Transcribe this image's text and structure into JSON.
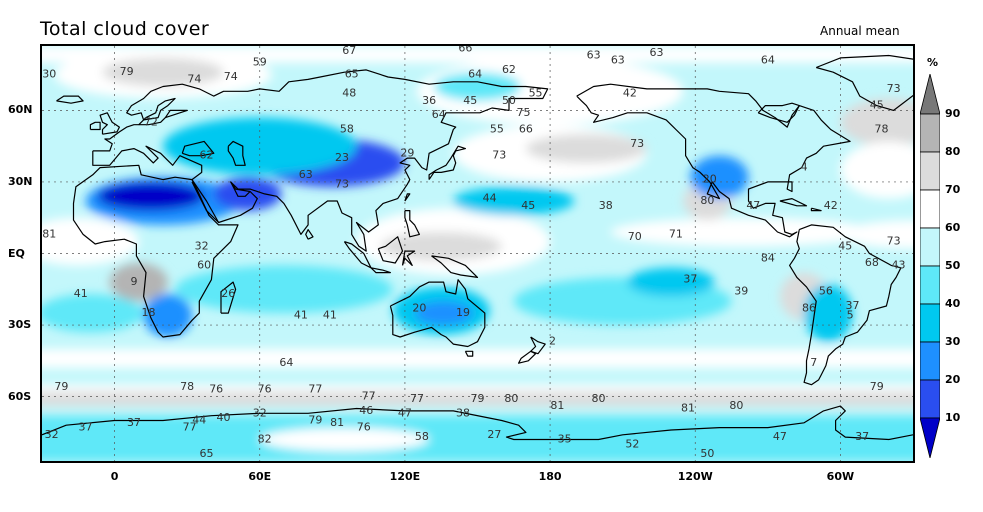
{
  "header": {
    "title": "Total cloud cover",
    "subtitle": "Annual mean"
  },
  "axes": {
    "y_labels": [
      {
        "label": "60N",
        "lat": 60
      },
      {
        "label": "30N",
        "lat": 30
      },
      {
        "label": "EQ",
        "lat": 0
      },
      {
        "label": "30S",
        "lat": -30
      },
      {
        "label": "60S",
        "lat": -60
      }
    ],
    "x_labels": [
      {
        "label": "0",
        "lon": 0
      },
      {
        "label": "60E",
        "lon": 60
      },
      {
        "label": "120E",
        "lon": 120
      },
      {
        "label": "180",
        "lon": 180
      },
      {
        "label": "120W",
        "lon": 240
      },
      {
        "label": "60W",
        "lon": 300
      }
    ],
    "lon_range": [
      -30,
      330
    ],
    "lat_range": [
      -87,
      87
    ]
  },
  "colorbar": {
    "unit": "%",
    "levels": [
      "10",
      "20",
      "30",
      "40",
      "50",
      "60",
      "70",
      "80",
      "90"
    ],
    "colors": [
      "#0000c8",
      "#2a4ef0",
      "#1e90ff",
      "#00c8f0",
      "#5ee8f8",
      "#c3f7fb",
      "#ffffff",
      "#dcdcdc",
      "#b4b4b4",
      "#787878"
    ]
  },
  "map_labels": [
    {
      "text": "30",
      "lon": -27,
      "lat": 75
    },
    {
      "text": "79",
      "lon": 5,
      "lat": 76
    },
    {
      "text": "74",
      "lon": 33,
      "lat": 73
    },
    {
      "text": "74",
      "lon": 48,
      "lat": 74
    },
    {
      "text": "59",
      "lon": 60,
      "lat": 80
    },
    {
      "text": "67",
      "lon": 97,
      "lat": 85
    },
    {
      "text": "65",
      "lon": 98,
      "lat": 75
    },
    {
      "text": "48",
      "lon": 97,
      "lat": 67
    },
    {
      "text": "66",
      "lon": 145,
      "lat": 86
    },
    {
      "text": "64",
      "lon": 149,
      "lat": 75
    },
    {
      "text": "62",
      "lon": 163,
      "lat": 77
    },
    {
      "text": "63",
      "lon": 198,
      "lat": 83
    },
    {
      "text": "63",
      "lon": 208,
      "lat": 81
    },
    {
      "text": "63",
      "lon": 224,
      "lat": 84
    },
    {
      "text": "64",
      "lon": 270,
      "lat": 81
    },
    {
      "text": "36",
      "lon": 130,
      "lat": 64
    },
    {
      "text": "45",
      "lon": 147,
      "lat": 64
    },
    {
      "text": "50",
      "lon": 163,
      "lat": 64
    },
    {
      "text": "55",
      "lon": 174,
      "lat": 67
    },
    {
      "text": "42",
      "lon": 213,
      "lat": 67
    },
    {
      "text": "73",
      "lon": 322,
      "lat": 69
    },
    {
      "text": "45",
      "lon": 315,
      "lat": 62
    },
    {
      "text": "64",
      "lon": 134,
      "lat": 58
    },
    {
      "text": "75",
      "lon": 169,
      "lat": 59
    },
    {
      "text": "55",
      "lon": 158,
      "lat": 52
    },
    {
      "text": "66",
      "lon": 170,
      "lat": 52
    },
    {
      "text": "78",
      "lon": 317,
      "lat": 52
    },
    {
      "text": "58",
      "lon": 96,
      "lat": 52
    },
    {
      "text": "72",
      "lon": 15,
      "lat": 55
    },
    {
      "text": "62",
      "lon": 38,
      "lat": 41
    },
    {
      "text": "23",
      "lon": 94,
      "lat": 40
    },
    {
      "text": "29",
      "lon": 121,
      "lat": 42
    },
    {
      "text": "73",
      "lon": 159,
      "lat": 41
    },
    {
      "text": "73",
      "lon": 216,
      "lat": 46
    },
    {
      "text": "63",
      "lon": 79,
      "lat": 33
    },
    {
      "text": "73",
      "lon": 94,
      "lat": 29
    },
    {
      "text": "4",
      "lon": 285,
      "lat": 36
    },
    {
      "text": "20",
      "lon": 246,
      "lat": 31
    },
    {
      "text": "80",
      "lon": 245,
      "lat": 22
    },
    {
      "text": "44",
      "lon": 155,
      "lat": 23
    },
    {
      "text": "45",
      "lon": 171,
      "lat": 20
    },
    {
      "text": "38",
      "lon": 203,
      "lat": 20
    },
    {
      "text": "47",
      "lon": 264,
      "lat": 20
    },
    {
      "text": "42",
      "lon": 296,
      "lat": 20
    },
    {
      "text": "81",
      "lon": -27,
      "lat": 8
    },
    {
      "text": "70",
      "lon": 215,
      "lat": 7
    },
    {
      "text": "71",
      "lon": 232,
      "lat": 8
    },
    {
      "text": "73",
      "lon": 322,
      "lat": 5
    },
    {
      "text": "32",
      "lon": 36,
      "lat": 3
    },
    {
      "text": "45",
      "lon": 302,
      "lat": 3
    },
    {
      "text": "60",
      "lon": 37,
      "lat": -5
    },
    {
      "text": "84",
      "lon": 270,
      "lat": -2
    },
    {
      "text": "68",
      "lon": 313,
      "lat": -4
    },
    {
      "text": "43",
      "lon": 324,
      "lat": -5
    },
    {
      "text": "9",
      "lon": 8,
      "lat": -12
    },
    {
      "text": "37",
      "lon": 238,
      "lat": -11
    },
    {
      "text": "39",
      "lon": 259,
      "lat": -16
    },
    {
      "text": "56",
      "lon": 294,
      "lat": -16
    },
    {
      "text": "41",
      "lon": -14,
      "lat": -17
    },
    {
      "text": "26",
      "lon": 47,
      "lat": -17
    },
    {
      "text": "37",
      "lon": 305,
      "lat": -22
    },
    {
      "text": "18",
      "lon": 14,
      "lat": -25
    },
    {
      "text": "41",
      "lon": 77,
      "lat": -26
    },
    {
      "text": "41",
      "lon": 89,
      "lat": -26
    },
    {
      "text": "20",
      "lon": 126,
      "lat": -23
    },
    {
      "text": "19",
      "lon": 144,
      "lat": -25
    },
    {
      "text": "86",
      "lon": 287,
      "lat": -23
    },
    {
      "text": "5",
      "lon": 304,
      "lat": -26
    },
    {
      "text": "2",
      "lon": 181,
      "lat": -37
    },
    {
      "text": "64",
      "lon": 71,
      "lat": -46
    },
    {
      "text": "7",
      "lon": 289,
      "lat": -46
    },
    {
      "text": "79",
      "lon": -22,
      "lat": -56
    },
    {
      "text": "78",
      "lon": 30,
      "lat": -56
    },
    {
      "text": "76",
      "lon": 42,
      "lat": -57
    },
    {
      "text": "76",
      "lon": 62,
      "lat": -57
    },
    {
      "text": "77",
      "lon": 83,
      "lat": -57
    },
    {
      "text": "77",
      "lon": 105,
      "lat": -60
    },
    {
      "text": "77",
      "lon": 125,
      "lat": -61
    },
    {
      "text": "79",
      "lon": 150,
      "lat": -61
    },
    {
      "text": "80",
      "lon": 164,
      "lat": -61
    },
    {
      "text": "81",
      "lon": 183,
      "lat": -64
    },
    {
      "text": "80",
      "lon": 200,
      "lat": -61
    },
    {
      "text": "81",
      "lon": 237,
      "lat": -65
    },
    {
      "text": "80",
      "lon": 257,
      "lat": -64
    },
    {
      "text": "79",
      "lon": 315,
      "lat": -56
    },
    {
      "text": "46",
      "lon": 104,
      "lat": -66
    },
    {
      "text": "47",
      "lon": 120,
      "lat": -67
    },
    {
      "text": "38",
      "lon": 144,
      "lat": -67
    },
    {
      "text": "32",
      "lon": 60,
      "lat": -67
    },
    {
      "text": "40",
      "lon": 45,
      "lat": -69
    },
    {
      "text": "44",
      "lon": 35,
      "lat": -70
    },
    {
      "text": "79",
      "lon": 83,
      "lat": -70
    },
    {
      "text": "81",
      "lon": 92,
      "lat": -71
    },
    {
      "text": "76",
      "lon": 103,
      "lat": -73
    },
    {
      "text": "77",
      "lon": 31,
      "lat": -73
    },
    {
      "text": "37",
      "lon": -12,
      "lat": -73
    },
    {
      "text": "37",
      "lon": 8,
      "lat": -71
    },
    {
      "text": "32",
      "lon": -26,
      "lat": -76
    },
    {
      "text": "82",
      "lon": 62,
      "lat": -78
    },
    {
      "text": "58",
      "lon": 127,
      "lat": -77
    },
    {
      "text": "27",
      "lon": 157,
      "lat": -76
    },
    {
      "text": "35",
      "lon": 186,
      "lat": -78
    },
    {
      "text": "52",
      "lon": 214,
      "lat": -80
    },
    {
      "text": "47",
      "lon": 275,
      "lat": -77
    },
    {
      "text": "37",
      "lon": 309,
      "lat": -77
    },
    {
      "text": "65",
      "lon": 38,
      "lat": -84
    },
    {
      "text": "50",
      "lon": 245,
      "lat": -84
    }
  ]
}
